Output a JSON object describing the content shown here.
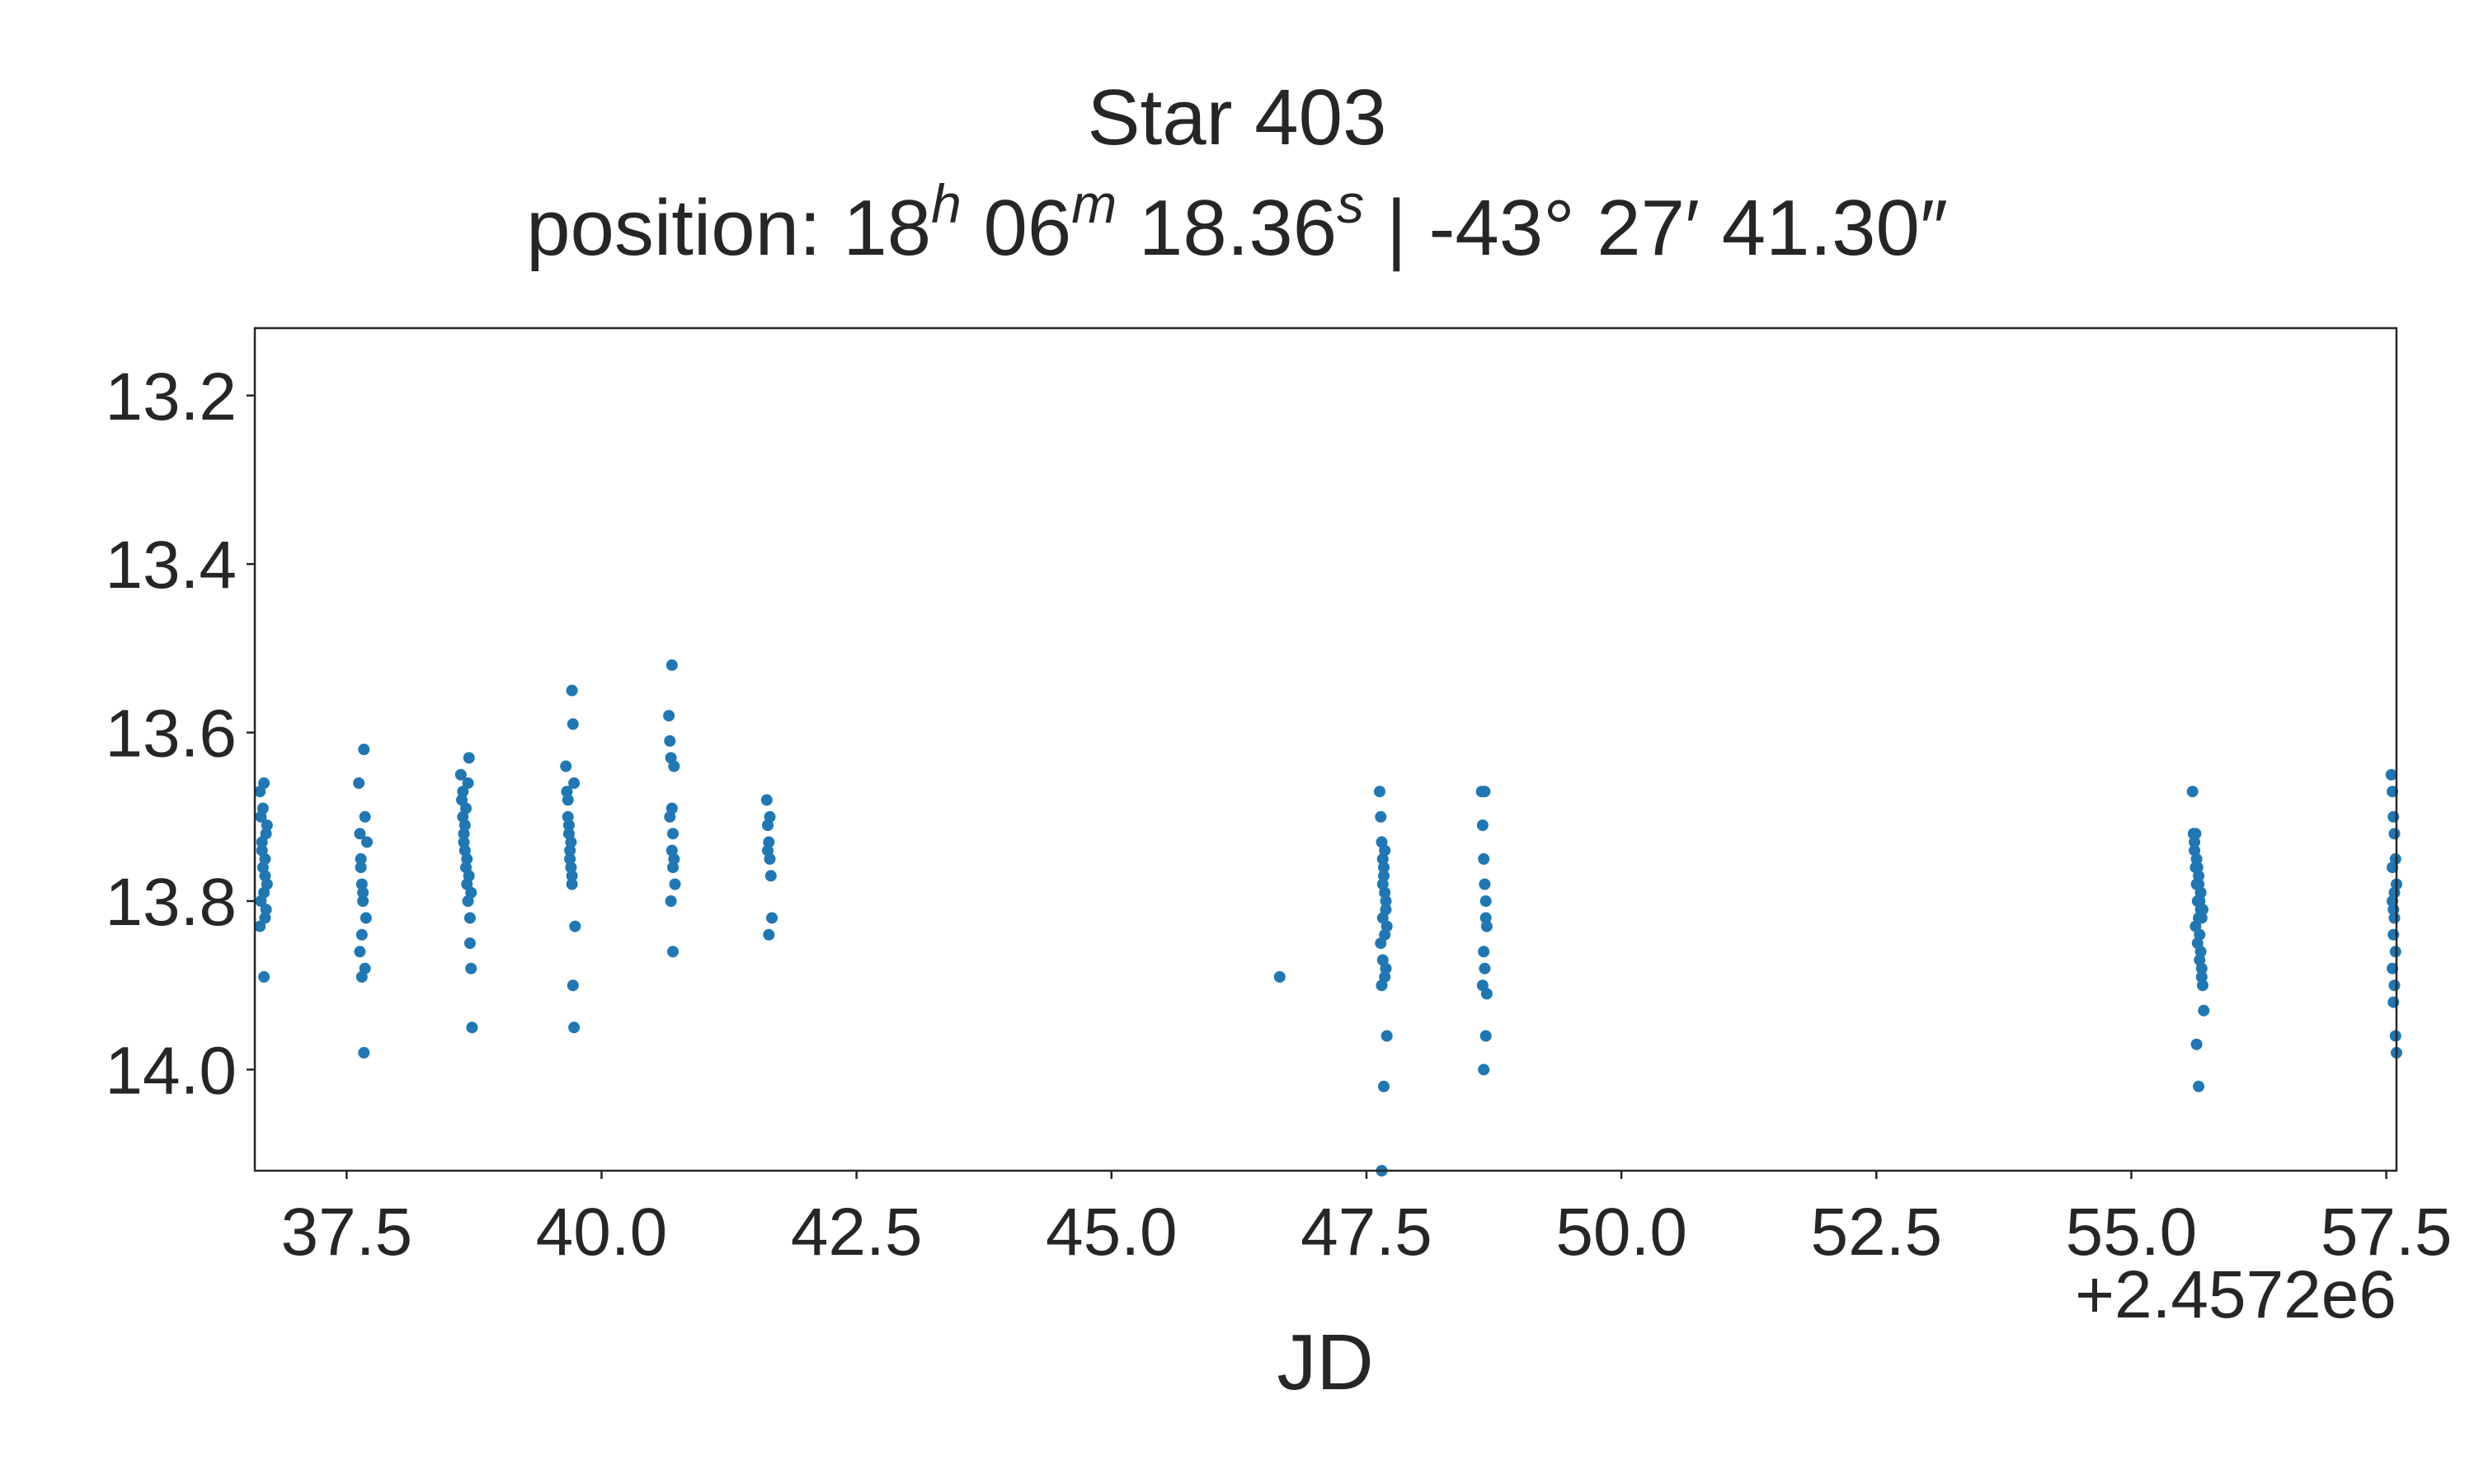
{
  "chart_data": {
    "type": "scatter",
    "title": "Star 403",
    "subtitle": {
      "prefix": "position: ",
      "ra_h": "18",
      "ra_h_unit": "h",
      "ra_m": "06",
      "ra_m_unit": "m",
      "ra_s": "18.36",
      "ra_s_unit": "s",
      "separator": " | ",
      "dec": "-43° 27′ 41.30″"
    },
    "xlabel": "JD",
    "ylabel": "",
    "x_offset_label": "+2.4572e6",
    "xlim": [
      36.6,
      57.6
    ],
    "ylim": [
      14.12,
      13.12
    ],
    "y_inverted": true,
    "xticks": [
      37.5,
      40.0,
      42.5,
      45.0,
      47.5,
      50.0,
      52.5,
      55.0,
      57.5
    ],
    "xtick_labels": [
      "37.5",
      "40.0",
      "42.5",
      "45.0",
      "47.5",
      "50.0",
      "52.5",
      "55.0",
      "57.5"
    ],
    "yticks": [
      13.2,
      13.4,
      13.6,
      13.8,
      14.0
    ],
    "ytick_labels": [
      "13.2",
      "13.4",
      "13.6",
      "13.8",
      "14.0"
    ],
    "grid": false,
    "color": "#1f77b4",
    "x": [
      36.65,
      36.66,
      36.67,
      36.68,
      36.69,
      36.7,
      36.71,
      36.72,
      36.65,
      36.67,
      36.69,
      36.66,
      36.7,
      36.68,
      36.72,
      36.71,
      36.69,
      36.7,
      37.62,
      37.63,
      37.64,
      37.65,
      37.66,
      37.67,
      37.68,
      37.69,
      37.63,
      37.65,
      37.67,
      37.64,
      37.66,
      37.68,
      37.7,
      37.65,
      38.62,
      38.63,
      38.64,
      38.65,
      38.66,
      38.67,
      38.68,
      38.69,
      38.7,
      38.71,
      38.72,
      38.73,
      38.64,
      38.66,
      38.68,
      38.7,
      38.65,
      38.67,
      38.71,
      38.69,
      38.72,
      39.65,
      39.66,
      39.67,
      39.68,
      39.69,
      39.7,
      39.71,
      39.72,
      39.73,
      39.74,
      39.67,
      39.69,
      39.71,
      39.7,
      39.72,
      39.68,
      39.73,
      39.71,
      40.66,
      40.67,
      40.68,
      40.69,
      40.7,
      40.71,
      40.72,
      40.68,
      40.7,
      40.69,
      40.71,
      40.67,
      40.7,
      40.69,
      41.62,
      41.63,
      41.64,
      41.65,
      41.66,
      41.67,
      41.64,
      41.65,
      41.63,
      46.65,
      47.63,
      47.64,
      47.65,
      47.66,
      47.67,
      47.68,
      47.69,
      47.7,
      47.64,
      47.66,
      47.68,
      47.65,
      47.67,
      47.69,
      47.66,
      47.68,
      47.7,
      47.67,
      47.65,
      47.69,
      47.66,
      47.68,
      48.63,
      48.64,
      48.65,
      48.66,
      48.67,
      48.68,
      48.65,
      48.66,
      48.64,
      48.67,
      48.65,
      48.66,
      48.67,
      48.68,
      55.6,
      55.61,
      55.62,
      55.63,
      55.64,
      55.65,
      55.66,
      55.67,
      55.68,
      55.69,
      55.7,
      55.71,
      55.62,
      55.64,
      55.66,
      55.68,
      55.7,
      55.63,
      55.65,
      55.67,
      55.69,
      55.64,
      55.66,
      55.68,
      55.65,
      55.67,
      55.63,
      55.69,
      55.66,
      55.68,
      57.55,
      57.56,
      57.57,
      57.58,
      57.59,
      57.6,
      57.56,
      57.58,
      57.57,
      57.59,
      57.56,
      57.58,
      57.57,
      57.59,
      57.6,
      57.58,
      57.56,
      57.57
    ],
    "y": [
      13.67,
      13.7,
      13.73,
      13.76,
      13.79,
      13.82,
      13.72,
      13.78,
      13.83,
      13.74,
      13.66,
      13.8,
      13.75,
      13.69,
      13.71,
      13.81,
      13.89,
      13.77,
      13.66,
      13.72,
      13.75,
      13.78,
      13.8,
      13.62,
      13.7,
      13.82,
      13.86,
      13.89,
      13.98,
      13.76,
      13.79,
      13.88,
      13.73,
      13.84,
      13.65,
      13.68,
      13.7,
      13.72,
      13.74,
      13.76,
      13.78,
      13.8,
      13.63,
      13.85,
      13.88,
      13.95,
      13.67,
      13.71,
      13.75,
      13.77,
      13.73,
      13.69,
      13.82,
      13.66,
      13.79,
      13.64,
      13.67,
      13.7,
      13.72,
      13.74,
      13.76,
      13.55,
      13.59,
      13.66,
      13.83,
      13.68,
      13.75,
      13.78,
      13.73,
      13.9,
      13.71,
      13.95,
      13.77,
      13.58,
      13.61,
      13.63,
      13.69,
      13.72,
      13.75,
      13.78,
      13.8,
      13.86,
      13.52,
      13.64,
      13.7,
      13.76,
      13.74,
      13.68,
      13.71,
      13.73,
      13.75,
      13.77,
      13.82,
      13.84,
      13.7,
      13.74,
      13.89,
      13.67,
      13.7,
      13.73,
      13.75,
      13.77,
      13.79,
      13.81,
      13.83,
      13.85,
      13.87,
      13.89,
      13.9,
      13.76,
      13.8,
      13.82,
      13.84,
      13.96,
      14.02,
      14.12,
      13.88,
      13.78,
      13.74,
      13.67,
      13.71,
      13.75,
      13.78,
      13.8,
      13.83,
      13.86,
      13.88,
      13.9,
      13.96,
      14.0,
      13.67,
      13.82,
      13.91,
      13.67,
      13.72,
      13.74,
      13.76,
      13.78,
      13.8,
      13.82,
      13.84,
      13.86,
      13.88,
      13.9,
      13.93,
      13.73,
      13.75,
      13.77,
      13.79,
      13.81,
      13.83,
      13.85,
      13.87,
      13.89,
      13.97,
      14.02,
      13.79,
      13.76,
      13.8,
      13.72,
      13.82,
      13.78,
      13.81,
      13.65,
      13.67,
      13.7,
      13.72,
      13.75,
      13.78,
      13.8,
      13.82,
      13.84,
      13.86,
      13.88,
      13.9,
      13.92,
      13.96,
      13.98,
      13.79,
      13.76,
      13.81
    ]
  }
}
